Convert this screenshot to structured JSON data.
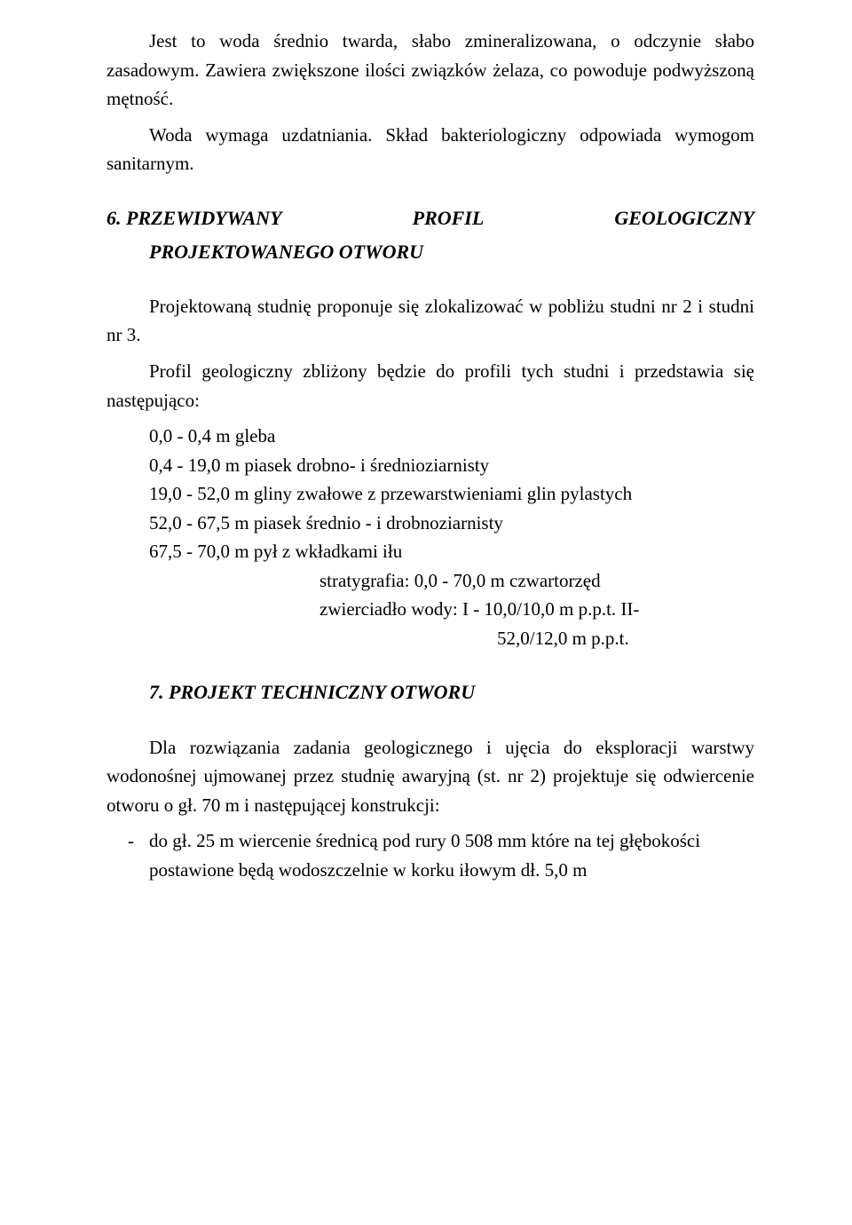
{
  "para1_a": "Jest to woda średnio twarda, słabo zmineralizowana, o odczynie słabo zasadowym. Zawiera zwiększone ilości związków żelaza, co powoduje podwyższoną mętność.",
  "para1_b": "Woda wymaga uzdatniania. Skład bakteriologiczny odpowiada wymogom sanitarnym.",
  "heading6_row": {
    "left": "6. PRZEWIDYWANY",
    "mid": "PROFIL",
    "right": "GEOLOGICZNY"
  },
  "heading6_sub": "PROJEKTOWANEGO OTWORU",
  "para2": "Projektowaną studnię proponuje się zlokalizować w pobliżu studni nr 2 i studni nr 3.",
  "para3": "Profil geologiczny zbliżony będzie do profili tych studni i przedstawia się następująco:",
  "profile": {
    "r1": "0,0 - 0,4 m gleba",
    "r2": "0,4 - 19,0 m piasek drobno- i średnioziarnisty",
    "r3": "19,0 - 52,0 m gliny zwałowe z przewarstwieniami glin pylastych",
    "r4": "52,0 - 67,5 m piasek średnio - i drobnoziarnisty",
    "r5": "67,5 - 70,0 m pył z wkładkami iłu"
  },
  "strat": {
    "s1": "stratygrafia: 0,0 - 70,0 m czwartorzęd",
    "s2": "zwierciadło wody: I - 10,0/10,0 m p.p.t. II-",
    "s3": "52,0/12,0 m p.p.t."
  },
  "heading7": "7. PROJEKT TECHNICZNY OTWORU",
  "para4": "Dla rozwiązania zadania geologicznego i ujęcia do eksploracji warstwy wodonośnej ujmowanej przez studnię awaryjną (st. nr 2) projektuje się odwiercenie otworu o gł. 70 m i następującej konstrukcji:",
  "bullet1_line1": "do gł. 25 m wiercenie średnicą pod rury 0 508 mm które na tej głębokości",
  "bullet1_line2": "postawione będą wodoszczelnie w korku iłowym dł. 5,0 m",
  "dash": "-"
}
